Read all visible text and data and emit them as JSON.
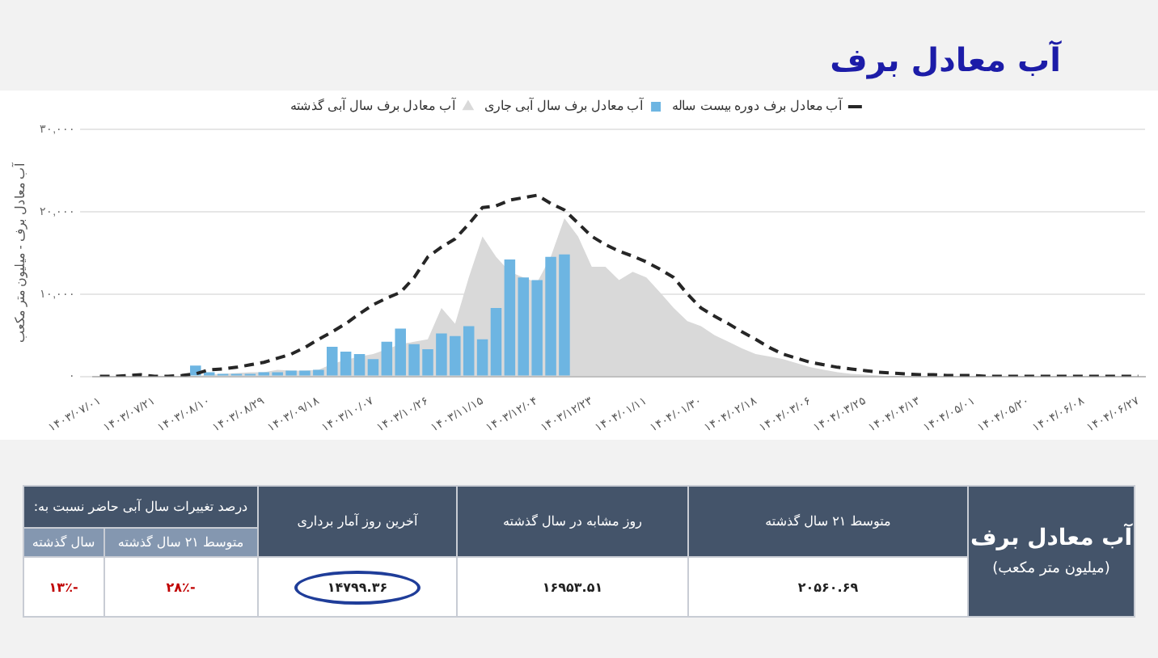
{
  "chart_data": {
    "type": "bar",
    "title": "آب معادل برف",
    "ylabel": "آب معادل برف - میلیون متر مکعب",
    "categories": [
      "۱۴۰۳/۰۷/۰۱",
      null,
      null,
      null,
      "۱۴۰۳/۰۷/۲۱",
      null,
      null,
      null,
      "۱۴۰۳/۰۸/۱۰",
      null,
      null,
      null,
      "۱۴۰۳/۰۸/۲۹",
      null,
      null,
      null,
      "۱۴۰۳/۰۹/۱۸",
      null,
      null,
      null,
      "۱۴۰۳/۱۰/۰۷",
      null,
      null,
      null,
      "۱۴۰۳/۱۰/۲۶",
      null,
      null,
      null,
      "۱۴۰۳/۱۱/۱۵",
      null,
      null,
      null,
      "۱۴۰۳/۱۲/۰۴",
      null,
      null,
      null,
      "۱۴۰۳/۱۲/۲۳",
      null,
      null,
      null,
      "۱۴۰۴/۰۱/۱۱",
      null,
      null,
      null,
      "۱۴۰۴/۰۱/۳۰",
      null,
      null,
      null,
      "۱۴۰۴/۰۲/۱۸",
      null,
      null,
      null,
      "۱۴۰۴/۰۳/۰۶",
      null,
      null,
      null,
      "۱۴۰۴/۰۳/۲۵",
      null,
      null,
      null,
      "۱۴۰۴/۰۴/۱۳",
      null,
      null,
      null,
      "۱۴۰۴/۰۵/۰۱",
      null,
      null,
      null,
      "۱۴۰۴/۰۵/۲۰",
      null,
      null,
      null,
      "۱۴۰۴/۰۶/۰۸",
      null,
      null,
      null,
      "۱۴۰۴/۰۶/۲۷"
    ],
    "series": [
      {
        "name": "آب معادل برف دوره بیست ساله",
        "type": "line",
        "line_style": "dashed",
        "color": "#262626",
        "values": [
          0,
          0,
          100,
          200,
          0,
          0,
          100,
          300,
          800,
          900,
          1100,
          1400,
          1700,
          2200,
          2700,
          3500,
          4500,
          5400,
          6400,
          7600,
          8700,
          9500,
          10200,
          12000,
          14500,
          15700,
          16700,
          18500,
          20500,
          20700,
          21400,
          21700,
          22000,
          21000,
          20200,
          18600,
          17000,
          16000,
          15200,
          14600,
          13900,
          13000,
          12000,
          10000,
          8300,
          7300,
          6400,
          5400,
          4500,
          3500,
          2700,
          2200,
          1700,
          1400,
          1100,
          900,
          700,
          500,
          400,
          300,
          200,
          200,
          100,
          100,
          100,
          0,
          0,
          0,
          0,
          0,
          0,
          0,
          0,
          0,
          0,
          0,
          0
        ]
      },
      {
        "name": "آب معادل برف سال آبی جاری",
        "color": "#6db5e2",
        "values": [
          0,
          0,
          0,
          0,
          0,
          0,
          0,
          1300,
          500,
          300,
          300,
          300,
          500,
          500,
          700,
          700,
          800,
          3600,
          3000,
          2700,
          2100,
          4200,
          5800,
          3900,
          3300,
          5200,
          4900,
          6100,
          4500,
          8300,
          14200,
          12000,
          11700,
          14500,
          14800,
          null,
          null,
          null,
          null,
          null,
          null,
          null,
          null,
          null,
          null,
          null,
          null,
          null,
          null,
          null,
          null,
          null,
          null,
          null,
          null,
          null,
          null,
          null,
          null,
          null,
          null,
          null,
          null,
          null,
          null,
          null,
          null,
          null,
          null,
          null,
          null,
          null,
          null,
          null,
          null,
          null,
          null
        ]
      },
      {
        "name": "آب معادل برف سال آبی گذشته",
        "type": "area",
        "color": "#d9d9d9",
        "values": [
          0,
          0,
          0,
          0,
          0,
          0,
          0,
          0,
          200,
          300,
          400,
          500,
          500,
          800,
          700,
          700,
          800,
          1500,
          2000,
          2400,
          2700,
          3300,
          3900,
          4200,
          4500,
          8300,
          6400,
          12000,
          17000,
          14500,
          12700,
          12000,
          11400,
          14500,
          19200,
          17000,
          13300,
          13300,
          11700,
          12700,
          12000,
          10200,
          8300,
          6700,
          6100,
          5000,
          4200,
          3400,
          2700,
          2400,
          2100,
          1600,
          1100,
          800,
          500,
          300,
          200,
          100,
          0,
          0,
          0,
          0,
          0,
          0,
          0,
          0,
          0,
          0,
          0,
          0,
          0,
          0,
          0,
          0,
          0,
          0,
          0
        ]
      }
    ],
    "ylim": [
      0,
      30000
    ],
    "yticks": [
      {
        "value": 0,
        "label": "۰"
      },
      {
        "value": 10000,
        "label": "۱۰,۰۰۰"
      },
      {
        "value": 20000,
        "label": "۲۰,۰۰۰"
      },
      {
        "value": 30000,
        "label": "۳۰,۰۰۰"
      }
    ],
    "grid": "y",
    "legend": "top",
    "marker": "none",
    "annotations": [
      "آب معادل برف",
      "(میلیون متر مکعب)",
      "متوسط ۲۱ سال گذشته",
      "۲۰۵۶۰.۶۹",
      "روز مشابه در سال گذشته",
      "۱۶۹۵۳.۵۱",
      "آخرین روز آمار برداری",
      "۱۴۷۹۹.۳۶",
      "درصد تغییرات سال آبی حاضر نسبت به:",
      "متوسط ۲۱ سال گذشته",
      "سال گذشته",
      "-۲۸٪",
      "-۱۳٪"
    ]
  }
}
